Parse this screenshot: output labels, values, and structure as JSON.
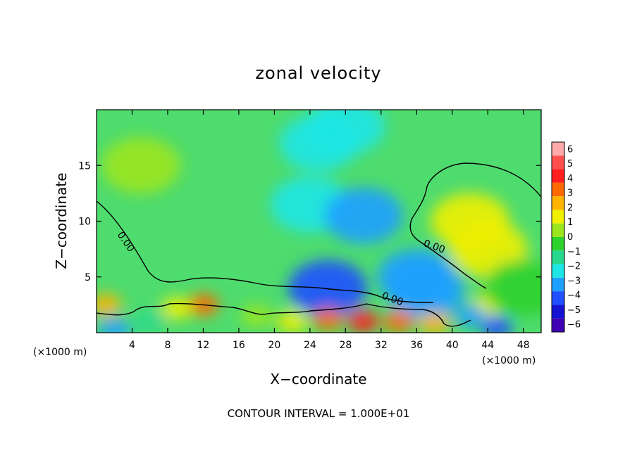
{
  "chart_data": {
    "type": "heatmap",
    "title": "zonal velocity",
    "xlabel": "X−coordinate",
    "ylabel": "Z−coordinate",
    "x_unit": "(×1000 m)",
    "footer": "CONTOUR INTERVAL = 1.000E+01",
    "xlim": [
      0,
      50
    ],
    "ylim": [
      0,
      20
    ],
    "x_ticks": [
      4,
      8,
      12,
      16,
      20,
      24,
      28,
      32,
      36,
      40,
      44,
      48
    ],
    "y_ticks": [
      5,
      10,
      15
    ],
    "colorbar": {
      "levels": [
        6,
        5,
        4,
        3,
        2,
        1,
        0,
        -1,
        -2,
        -3,
        -4,
        -5,
        -6
      ],
      "level_labels": [
        "6",
        "5",
        "4",
        "3",
        "2",
        "1",
        "0",
        "−1",
        "−2",
        "−3",
        "−4",
        "−5",
        "−6"
      ],
      "colors": [
        "#ffaaaa",
        "#ff5050",
        "#ff1e1e",
        "#ff6a00",
        "#ffb400",
        "#f0f000",
        "#9be61e",
        "#2dd22d",
        "#27d98f",
        "#1ee6e6",
        "#1ea0ff",
        "#2050ff",
        "#1414d2",
        "#4000b4"
      ]
    },
    "contour_labels": [
      {
        "text": "0.00",
        "x": 2.3,
        "z": 8.8
      },
      {
        "text": "0.00",
        "x": 36.7,
        "z": 7.8
      },
      {
        "text": "0.00",
        "x": 32.0,
        "z": 3.1
      }
    ],
    "features": [
      {
        "x": 5,
        "z": 15,
        "u": 0.0
      },
      {
        "x": 25,
        "z": 17,
        "u": -2.2
      },
      {
        "x": 28,
        "z": 18.5,
        "u": -2.5
      },
      {
        "x": 24,
        "z": 11.5,
        "u": -2.6
      },
      {
        "x": 30,
        "z": 10.5,
        "u": -3.2
      },
      {
        "x": 36,
        "z": 5.0,
        "u": -3.8
      },
      {
        "x": 37,
        "z": 3.8,
        "u": -3.3
      },
      {
        "x": 26,
        "z": 4.0,
        "u": -4.4
      },
      {
        "x": 42,
        "z": 10.0,
        "u": 1.8
      },
      {
        "x": 44,
        "z": 7.5,
        "u": 1.0
      },
      {
        "x": 12,
        "z": 2.5,
        "u": 3.2
      },
      {
        "x": 9,
        "z": 2.2,
        "u": 1.5
      },
      {
        "x": 1,
        "z": 2.5,
        "u": 2.0
      },
      {
        "x": 30,
        "z": 1.0,
        "u": 4.5
      },
      {
        "x": 26,
        "z": 1.2,
        "u": 3.5
      },
      {
        "x": 34,
        "z": 1.0,
        "u": 3.0
      },
      {
        "x": 38,
        "z": 0.8,
        "u": 2.5
      },
      {
        "x": 44,
        "z": 2.5,
        "u": 1.5
      },
      {
        "x": 18,
        "z": 1.5,
        "u": 0.5
      },
      {
        "x": 22,
        "z": 1.0,
        "u": 1.2
      },
      {
        "x": 6,
        "z": 1.0,
        "u": -2.0
      },
      {
        "x": 2,
        "z": 0.3,
        "u": -4.0
      },
      {
        "x": 42,
        "z": 1.5,
        "u": -3.8
      },
      {
        "x": 45,
        "z": 0.5,
        "u": -5.0
      },
      {
        "x": 48,
        "z": 4.0,
        "u": -0.5
      }
    ]
  }
}
